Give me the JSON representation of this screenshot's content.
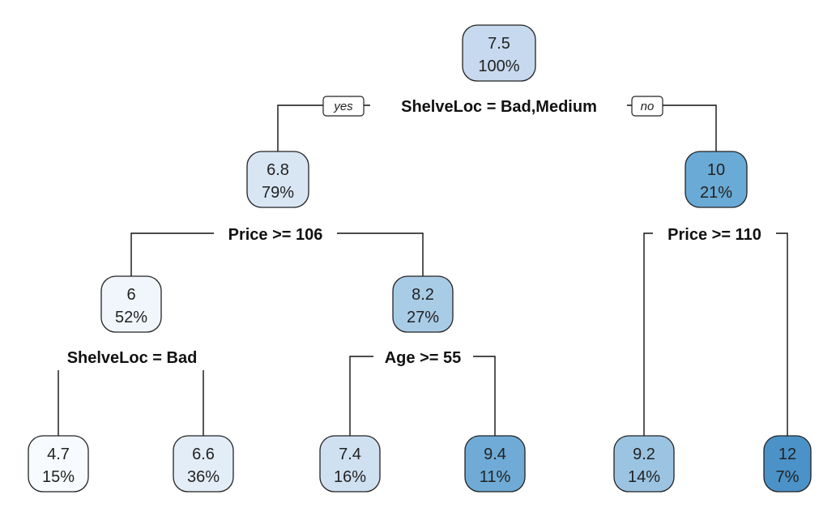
{
  "tree": {
    "yes_label": "yes",
    "no_label": "no",
    "nodes": [
      {
        "id": "n1",
        "value": "7.5",
        "pct": "100%",
        "fill": "#c6d9ee"
      },
      {
        "id": "n2",
        "value": "6.8",
        "pct": "79%",
        "fill": "#d8e6f4"
      },
      {
        "id": "n3",
        "value": "10",
        "pct": "21%",
        "fill": "#6aaad6"
      },
      {
        "id": "n4",
        "value": "6",
        "pct": "52%",
        "fill": "#f1f6fc"
      },
      {
        "id": "n5",
        "value": "8.2",
        "pct": "27%",
        "fill": "#a9cce6"
      },
      {
        "id": "n6",
        "value": "4.7",
        "pct": "15%",
        "fill": "#f7fbff"
      },
      {
        "id": "n7",
        "value": "6.6",
        "pct": "36%",
        "fill": "#e3edf8"
      },
      {
        "id": "n8",
        "value": "7.4",
        "pct": "16%",
        "fill": "#cfe0f1"
      },
      {
        "id": "n9",
        "value": "9.4",
        "pct": "11%",
        "fill": "#6fabd6"
      },
      {
        "id": "n10",
        "value": "9.2",
        "pct": "14%",
        "fill": "#9bc4e2"
      },
      {
        "id": "n11",
        "value": "12",
        "pct": "7%",
        "fill": "#4b92c8"
      }
    ],
    "splits": [
      {
        "id": "s1",
        "label": "ShelveLoc = Bad,Medium"
      },
      {
        "id": "s2",
        "label": "Price >= 106"
      },
      {
        "id": "s3",
        "label": "Price >= 110"
      },
      {
        "id": "s4",
        "label": "ShelveLoc = Bad"
      },
      {
        "id": "s5",
        "label": "Age >= 55"
      }
    ]
  }
}
